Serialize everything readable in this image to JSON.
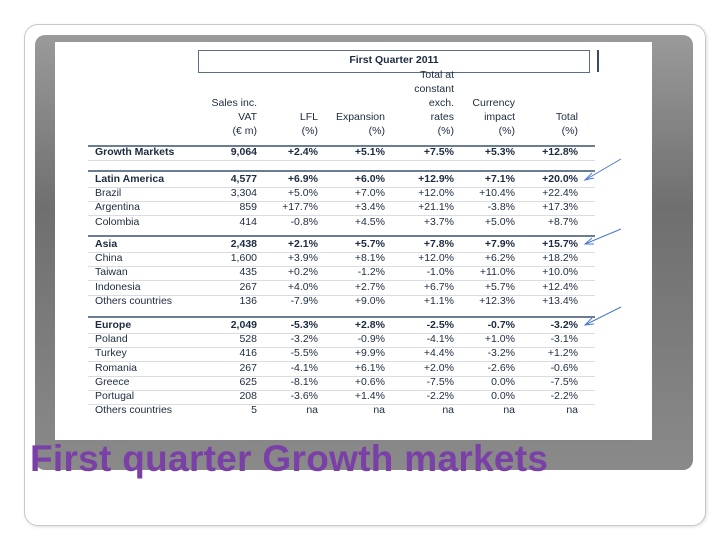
{
  "slide_title": "First quarter Growth markets",
  "table": {
    "caption": "First Quarter 2011",
    "columns": [
      [
        "Sales inc.",
        "VAT",
        "(€ m)"
      ],
      [
        "LFL",
        "(%)"
      ],
      [
        "Expansion",
        "(%)"
      ],
      [
        "Total at",
        "constant",
        "exch.",
        "rates",
        "(%)"
      ],
      [
        "Currency",
        "impact",
        "(%)"
      ],
      [
        "Total",
        "(%)"
      ]
    ],
    "groups": [
      {
        "rows": [
          [
            "Growth Markets",
            "9,064",
            "+2.4%",
            "+5.1%",
            "+7.5%",
            "+5.3%",
            "+12.8%"
          ]
        ]
      },
      {
        "rows": [
          [
            "Latin America",
            "4,577",
            "+6.9%",
            "+6.0%",
            "+12.9%",
            "+7.1%",
            "+20.0%"
          ],
          [
            "Brazil",
            "3,304",
            "+5.0%",
            "+7.0%",
            "+12.0%",
            "+10.4%",
            "+22.4%"
          ],
          [
            "Argentina",
            "859",
            "+17.7%",
            "+3.4%",
            "+21.1%",
            "-3.8%",
            "+17.3%"
          ],
          [
            "Colombia",
            "414",
            "-0.8%",
            "+4.5%",
            "+3.7%",
            "+5.0%",
            "+8.7%"
          ]
        ]
      },
      {
        "rows": [
          [
            "Asia",
            "2,438",
            "+2.1%",
            "+5.7%",
            "+7.8%",
            "+7.9%",
            "+15.7%"
          ],
          [
            "China",
            "1,600",
            "+3.9%",
            "+8.1%",
            "+12.0%",
            "+6.2%",
            "+18.2%"
          ],
          [
            "Taiwan",
            "435",
            "+0.2%",
            "-1.2%",
            "-1.0%",
            "+11.0%",
            "+10.0%"
          ],
          [
            "Indonesia",
            "267",
            "+4.0%",
            "+2.7%",
            "+6.7%",
            "+5.7%",
            "+12.4%"
          ],
          [
            "Others countries",
            "136",
            "-7.9%",
            "+9.0%",
            "+1.1%",
            "+12.3%",
            "+13.4%"
          ]
        ]
      },
      {
        "rows": [
          [
            "Europe",
            "2,049",
            "-5.3%",
            "+2.8%",
            "-2.5%",
            "-0.7%",
            "-3.2%"
          ],
          [
            "Poland",
            "528",
            "-3.2%",
            "-0.9%",
            "-4.1%",
            "+1.0%",
            "-3.1%"
          ],
          [
            "Turkey",
            "416",
            "-5.5%",
            "+9.9%",
            "+4.4%",
            "-3.2%",
            "+1.2%"
          ],
          [
            "Romania",
            "267",
            "-4.1%",
            "+6.1%",
            "+2.0%",
            "-2.6%",
            "-0.6%"
          ],
          [
            "Greece",
            "625",
            "-8.1%",
            "+0.6%",
            "-7.5%",
            "0.0%",
            "-7.5%"
          ],
          [
            "Portugal",
            "208",
            "-3.6%",
            "+1.4%",
            "-2.2%",
            "0.0%",
            "-2.2%"
          ],
          [
            "Others countries",
            "5",
            "na",
            "na",
            "na",
            "na",
            "na"
          ]
        ]
      }
    ]
  }
}
